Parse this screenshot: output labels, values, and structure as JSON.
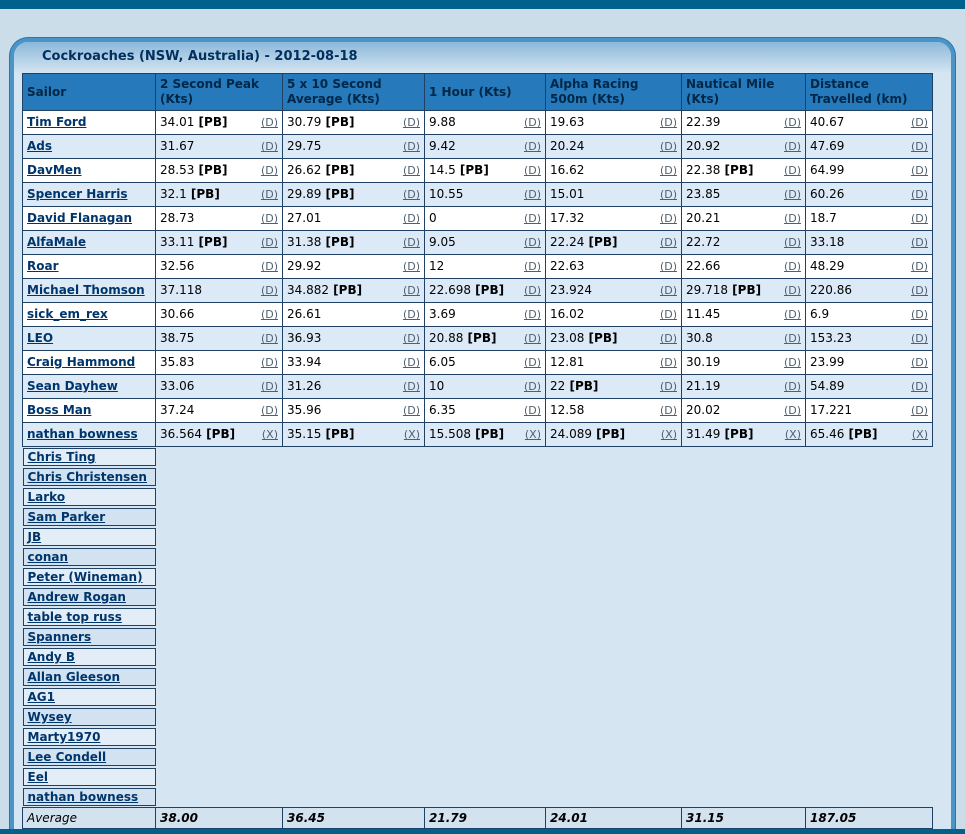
{
  "title_bar": {
    "title": "Cockroaches (NSW, Australia) - 2012-08-18"
  },
  "table": {
    "columns": [
      "Sailor",
      "2 Second Peak (Kts)",
      "5 x 10 Second Average (Kts)",
      "1 Hour (Kts)",
      "Alpha Racing 500m (Kts)",
      "Nautical Mile (Kts)",
      "Distance Travelled (km)"
    ],
    "pb_label": "[PB]",
    "rows": [
      {
        "sailor": "Tim Ford",
        "flag": "(D)",
        "cells": [
          {
            "v": "34.01",
            "pb": true
          },
          {
            "v": "30.79",
            "pb": true
          },
          {
            "v": "9.88"
          },
          {
            "v": "19.63"
          },
          {
            "v": "22.39"
          },
          {
            "v": "40.67"
          }
        ]
      },
      {
        "sailor": "Ads",
        "flag": "(D)",
        "cells": [
          {
            "v": "31.67"
          },
          {
            "v": "29.75"
          },
          {
            "v": "9.42"
          },
          {
            "v": "20.24"
          },
          {
            "v": "20.92"
          },
          {
            "v": "47.69"
          }
        ]
      },
      {
        "sailor": "DavMen",
        "flag": "(D)",
        "cells": [
          {
            "v": "28.53",
            "pb": true
          },
          {
            "v": "26.62",
            "pb": true
          },
          {
            "v": "14.5",
            "pb": true
          },
          {
            "v": "16.62"
          },
          {
            "v": "22.38",
            "pb": true
          },
          {
            "v": "64.99"
          }
        ]
      },
      {
        "sailor": "Spencer Harris",
        "flag": "(D)",
        "cells": [
          {
            "v": "32.1",
            "pb": true
          },
          {
            "v": "29.89",
            "pb": true
          },
          {
            "v": "10.55"
          },
          {
            "v": "15.01"
          },
          {
            "v": "23.85"
          },
          {
            "v": "60.26"
          }
        ]
      },
      {
        "sailor": "David Flanagan",
        "flag": "(D)",
        "cells": [
          {
            "v": "28.73"
          },
          {
            "v": "27.01"
          },
          {
            "v": "0"
          },
          {
            "v": "17.32"
          },
          {
            "v": "20.21"
          },
          {
            "v": "18.7"
          }
        ]
      },
      {
        "sailor": "AlfaMale",
        "flag": "(D)",
        "cells": [
          {
            "v": "33.11",
            "pb": true
          },
          {
            "v": "31.38",
            "pb": true
          },
          {
            "v": "9.05"
          },
          {
            "v": "22.24",
            "pb": true
          },
          {
            "v": "22.72"
          },
          {
            "v": "33.18"
          }
        ]
      },
      {
        "sailor": "Roar",
        "flag": "(D)",
        "cells": [
          {
            "v": "32.56"
          },
          {
            "v": "29.92"
          },
          {
            "v": "12"
          },
          {
            "v": "22.63"
          },
          {
            "v": "22.66"
          },
          {
            "v": "48.29"
          }
        ]
      },
      {
        "sailor": "Michael Thomson",
        "flag": "(D)",
        "cells": [
          {
            "v": "37.118"
          },
          {
            "v": "34.882",
            "pb": true
          },
          {
            "v": "22.698",
            "pb": true
          },
          {
            "v": "23.924"
          },
          {
            "v": "29.718",
            "pb": true
          },
          {
            "v": "220.86"
          }
        ]
      },
      {
        "sailor": "sick_em_rex",
        "flag": "(D)",
        "cells": [
          {
            "v": "30.66"
          },
          {
            "v": "26.61"
          },
          {
            "v": "3.69"
          },
          {
            "v": "16.02"
          },
          {
            "v": "11.45"
          },
          {
            "v": "6.9"
          }
        ]
      },
      {
        "sailor": "LEO",
        "flag": "(D)",
        "cells": [
          {
            "v": "38.75"
          },
          {
            "v": "36.93"
          },
          {
            "v": "20.88",
            "pb": true
          },
          {
            "v": "23.08",
            "pb": true
          },
          {
            "v": "30.8"
          },
          {
            "v": "153.23"
          }
        ]
      },
      {
        "sailor": "Craig Hammond",
        "flag": "(D)",
        "cells": [
          {
            "v": "35.83"
          },
          {
            "v": "33.94"
          },
          {
            "v": "6.05"
          },
          {
            "v": "12.81"
          },
          {
            "v": "30.19"
          },
          {
            "v": "23.99"
          }
        ]
      },
      {
        "sailor": "Sean Dayhew",
        "flag": "(D)",
        "cells": [
          {
            "v": "33.06"
          },
          {
            "v": "31.26"
          },
          {
            "v": "10"
          },
          {
            "v": "22",
            "pb": true
          },
          {
            "v": "21.19"
          },
          {
            "v": "54.89"
          }
        ]
      },
      {
        "sailor": "Boss Man",
        "flag": "(D)",
        "cells": [
          {
            "v": "37.24"
          },
          {
            "v": "35.96"
          },
          {
            "v": "6.35"
          },
          {
            "v": "12.58"
          },
          {
            "v": "20.02"
          },
          {
            "v": "17.221"
          }
        ]
      },
      {
        "sailor": "nathan bowness",
        "flag": "(X)",
        "cells": [
          {
            "v": "36.564",
            "pb": true
          },
          {
            "v": "35.15",
            "pb": true
          },
          {
            "v": "15.508",
            "pb": true
          },
          {
            "v": "24.089",
            "pb": true
          },
          {
            "v": "31.49",
            "pb": true
          },
          {
            "v": "65.46",
            "pb": true
          }
        ]
      }
    ],
    "name_only_rows": [
      "Chris Ting",
      "Chris Christensen",
      "Larko",
      "Sam Parker",
      "JB",
      "conan",
      "Peter (Wineman)",
      "Andrew Rogan",
      "table top russ",
      "Spanners",
      "Andy B",
      "Allan Gleeson",
      "AG1",
      "Wysey",
      "Marty1970",
      "Lee Condell",
      "Eel",
      "nathan bowness"
    ],
    "average": {
      "label": "Average",
      "values": [
        "38.00",
        "36.45",
        "21.79",
        "24.01",
        "31.15",
        "187.05"
      ]
    }
  },
  "colors": {
    "topbar": "#00618d",
    "panel_bg": "#d5e5f1",
    "panel_border": "#4a94c8",
    "header_bg": "#2679ba",
    "link": "#00356b",
    "flag": "#4f6170",
    "row_alt": "#dce9f7"
  }
}
